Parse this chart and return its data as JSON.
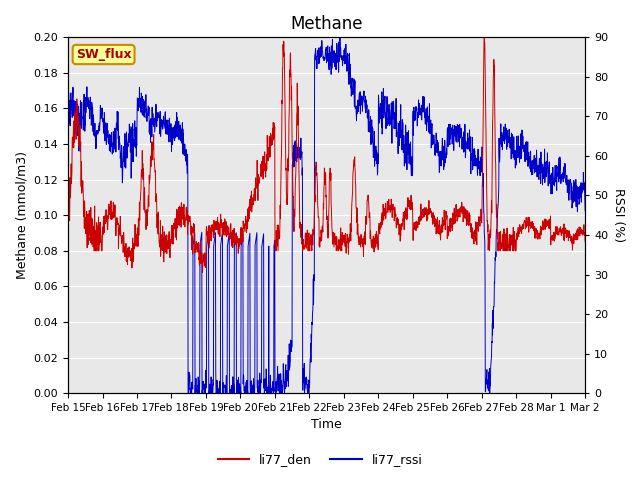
{
  "title": "Methane",
  "ylabel_left": "Methane (mmol/m3)",
  "ylabel_right": "RSSI (%)",
  "xlabel": "Time",
  "ylim_left": [
    0.0,
    0.2
  ],
  "ylim_right": [
    0,
    90
  ],
  "yticks_left": [
    0.0,
    0.02,
    0.04,
    0.06,
    0.08,
    0.1,
    0.12,
    0.14,
    0.16,
    0.18,
    0.2
  ],
  "yticks_right": [
    0,
    10,
    20,
    30,
    40,
    50,
    60,
    70,
    80,
    90
  ],
  "bg_color": "#e8e8e8",
  "line_color_red": "#cc0000",
  "line_color_blue": "#0000cc",
  "legend_entries": [
    "li77_den",
    "li77_rssi"
  ],
  "sw_flux_label": "SW_flux",
  "annotation_box_facecolor": "#ffff99",
  "annotation_box_edgecolor": "#cc8800",
  "x_tick_labels": [
    "Feb 15",
    "Feb 16",
    "Feb 17",
    "Feb 18",
    "Feb 19",
    "Feb 20",
    "Feb 21",
    "Feb 22",
    "Feb 23",
    "Feb 24",
    "Feb 25",
    "Feb 26",
    "Feb 27",
    "Feb 28",
    "Mar 1",
    "Mar 2"
  ]
}
